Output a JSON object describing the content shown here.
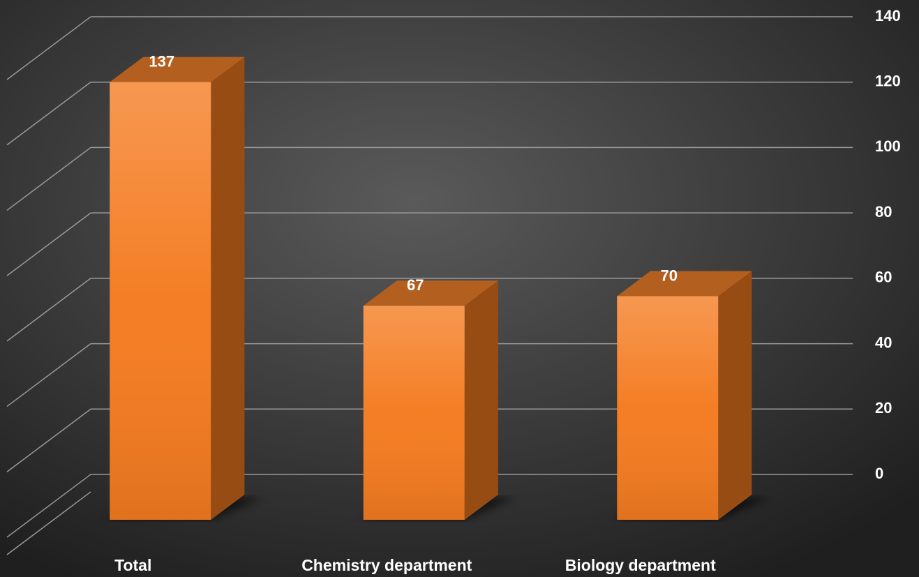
{
  "chart_data": {
    "type": "bar3d",
    "categories": [
      "Total",
      "Chemistry department",
      "Biology department"
    ],
    "values": [
      137,
      67,
      70
    ],
    "color": "#f47b20",
    "ylim": [
      0,
      140
    ],
    "yticks": [
      0,
      20,
      40,
      60,
      80,
      100,
      120,
      140
    ],
    "grid": true
  }
}
